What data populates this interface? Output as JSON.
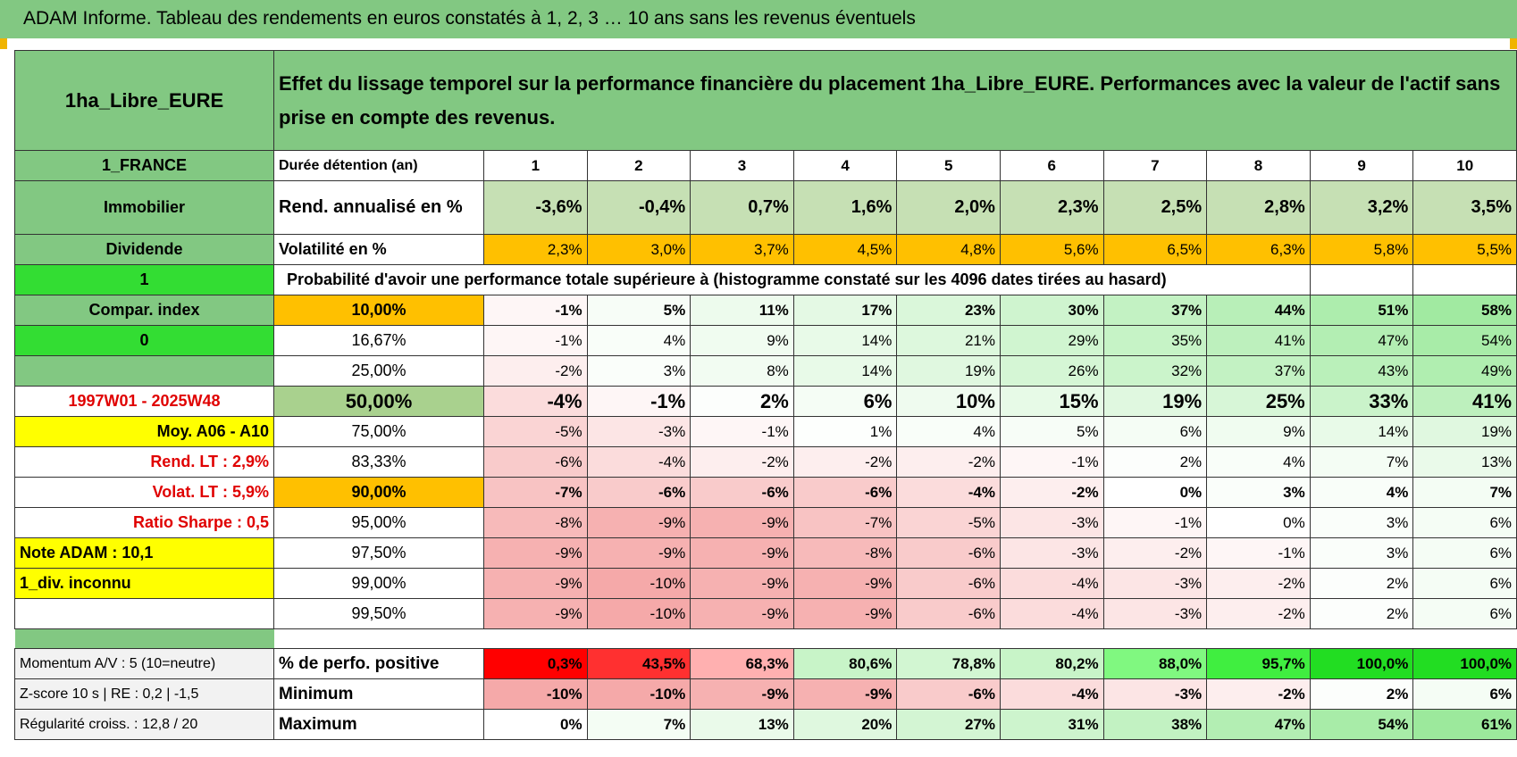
{
  "header": {
    "title": "ADAM Informe. Tableau des rendements en euros constatés à 1, 2, 3 … 10 ans sans les revenus éventuels"
  },
  "table": {
    "name": "1ha_Libre_EURE",
    "description": "Effet du lissage temporel sur la performance financière du placement 1ha_Libre_EURE. Performances avec la valeur de l'actif sans prise en compte des revenus.",
    "rows": [
      {
        "left": "1_FRANCE",
        "label": "Durée détention (an)",
        "values": [
          "1",
          "2",
          "3",
          "4",
          "5",
          "6",
          "7",
          "8",
          "9",
          "10"
        ]
      },
      {
        "left": "Immobilier",
        "label": "Rend. annualisé en %",
        "values": [
          "-3,6%",
          "-0,4%",
          "0,7%",
          "1,6%",
          "2,0%",
          "2,3%",
          "2,5%",
          "2,8%",
          "3,2%",
          "3,5%"
        ]
      },
      {
        "left": "Dividende",
        "label": "Volatilité en %",
        "values": [
          "2,3%",
          "3,0%",
          "3,7%",
          "4,5%",
          "4,8%",
          "5,6%",
          "6,5%",
          "6,3%",
          "5,8%",
          "5,5%"
        ]
      },
      {
        "left": "1",
        "label": "Probabilité d'avoir une performance totale supérieure à (histogramme constaté sur les 4096 dates tirées au hasard)"
      },
      {
        "left": "Compar. index",
        "label": "10,00%",
        "values": [
          "-1%",
          "5%",
          "11%",
          "17%",
          "23%",
          "30%",
          "37%",
          "44%",
          "51%",
          "58%"
        ]
      },
      {
        "left": "0",
        "label": "16,67%",
        "values": [
          "-1%",
          "4%",
          "9%",
          "14%",
          "21%",
          "29%",
          "35%",
          "41%",
          "47%",
          "54%"
        ]
      },
      {
        "label": "25,00%",
        "values": [
          "-2%",
          "3%",
          "8%",
          "14%",
          "19%",
          "26%",
          "32%",
          "37%",
          "43%",
          "49%"
        ]
      },
      {
        "left": "1997W01 - 2025W48",
        "label": "50,00%",
        "values": [
          "-4%",
          "-1%",
          "2%",
          "6%",
          "10%",
          "15%",
          "19%",
          "25%",
          "33%",
          "41%"
        ]
      },
      {
        "left": "Moy. A06 - A10",
        "label": "75,00%",
        "values": [
          "-5%",
          "-3%",
          "-1%",
          "1%",
          "4%",
          "5%",
          "6%",
          "9%",
          "14%",
          "19%"
        ]
      },
      {
        "left": "Rend. LT :   2,9%",
        "label": "83,33%",
        "values": [
          "-6%",
          "-4%",
          "-2%",
          "-2%",
          "-2%",
          "-1%",
          "2%",
          "4%",
          "7%",
          "13%"
        ]
      },
      {
        "left": "Volat. LT :   5,9%",
        "label": "90,00%",
        "values": [
          "-7%",
          "-6%",
          "-6%",
          "-6%",
          "-4%",
          "-2%",
          "0%",
          "3%",
          "4%",
          "7%"
        ]
      },
      {
        "left": "Ratio Sharpe :     0,5",
        "label": "95,00%",
        "values": [
          "-8%",
          "-9%",
          "-9%",
          "-7%",
          "-5%",
          "-3%",
          "-1%",
          "0%",
          "3%",
          "6%"
        ]
      },
      {
        "left": "Note ADAM : 10,1",
        "label": "97,50%",
        "values": [
          "-9%",
          "-9%",
          "-9%",
          "-8%",
          "-6%",
          "-3%",
          "-2%",
          "-1%",
          "3%",
          "6%"
        ]
      },
      {
        "left": "1_div. inconnu",
        "label": "99,00%",
        "values": [
          "-9%",
          "-10%",
          "-9%",
          "-9%",
          "-6%",
          "-4%",
          "-3%",
          "-2%",
          "2%",
          "6%"
        ]
      },
      {
        "label": "99,50%",
        "values": [
          "-9%",
          "-10%",
          "-9%",
          "-9%",
          "-6%",
          "-4%",
          "-3%",
          "-2%",
          "2%",
          "6%"
        ]
      },
      {
        "left": "Momentum A/V : 5 (10=neutre)",
        "label": "% de perfo. positive",
        "values": [
          "0,3%",
          "43,5%",
          "68,3%",
          "80,6%",
          "78,8%",
          "80,2%",
          "88,0%",
          "95,7%",
          "100,0%",
          "100,0%"
        ]
      },
      {
        "left": "Z-score 10 s | RE : 0,2 | -1,5",
        "label": "Minimum",
        "values": [
          "-10%",
          "-10%",
          "-9%",
          "-9%",
          "-6%",
          "-4%",
          "-3%",
          "-2%",
          "2%",
          "6%"
        ]
      },
      {
        "left": "Régularité croiss. : 12,8 / 20",
        "label": "Maximum",
        "values": [
          "0%",
          "7%",
          "13%",
          "20%",
          "27%",
          "31%",
          "38%",
          "47%",
          "54%",
          "61%"
        ]
      }
    ]
  }
}
